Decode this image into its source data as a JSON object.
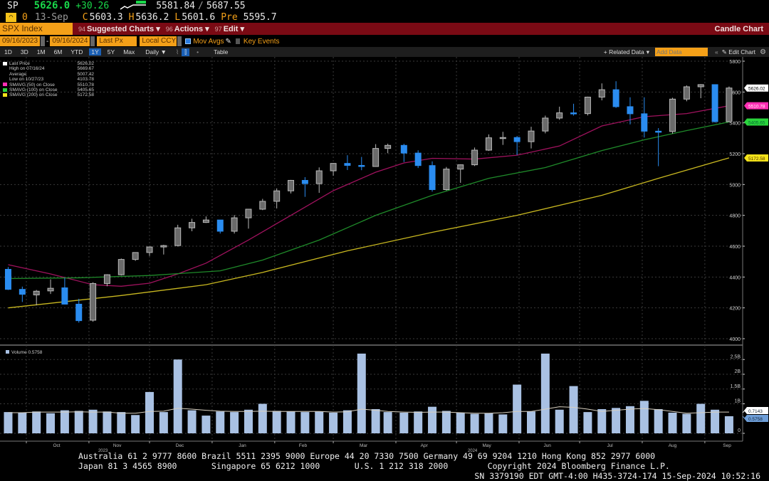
{
  "quote": {
    "ticker": "SP",
    "last": "5626.0",
    "change": "+30.26",
    "range_low": "5581.84",
    "range_sep": "/",
    "range_high": "5687.55",
    "flag": "0",
    "date": "13-Sep",
    "close_label": "C",
    "close": "5603.3",
    "high_label": "H",
    "high": "5636.2",
    "low_label": "L",
    "low": "5601.6",
    "pre_label": "Pre",
    "pre": "5595.7"
  },
  "menubar": {
    "security": "SPX Index",
    "suggested": "Suggested Charts",
    "suggested_key": "94",
    "actions": "Actions",
    "actions_key": "96",
    "edit": "Edit",
    "edit_key": "97",
    "title": "Candle Chart"
  },
  "controls": {
    "start_date": "09/16/2023",
    "end_date": "09/16/2024",
    "dash": "-",
    "field": "Last Px",
    "currency": "Local CCY",
    "mov_avgs": "Mov Avgs",
    "mov_avgs_checked": true,
    "key_events": "Key Events",
    "key_events_checked": false
  },
  "periods": {
    "items": [
      "1D",
      "3D",
      "1M",
      "6M",
      "YTD",
      "1Y",
      "5Y",
      "Max"
    ],
    "active": "1Y",
    "frequency": "Daily",
    "table": "Table",
    "related": "+ Related Data",
    "add_data_placeholder": "Add Data",
    "collapse": "«",
    "edit_chart": "Edit Chart"
  },
  "legend": [
    {
      "label": "Last Price",
      "value": "5626.02",
      "color": "#ffffff"
    },
    {
      "label": "High on 07/16/24",
      "value": "5669.67",
      "color": ""
    },
    {
      "label": "Average",
      "value": "5007.42",
      "color": ""
    },
    {
      "label": "Low on 10/27/23",
      "value": "4103.78",
      "color": ""
    },
    {
      "label": "SMAVG (50)  on Close",
      "value": "5510.78",
      "color": "#ff2fb4"
    },
    {
      "label": "SMAVG (100)  on Close",
      "value": "5405.65",
      "color": "#2ad43c"
    },
    {
      "label": "SMAVG (200)  on Close",
      "value": "5172.58",
      "color": "#f2e21a"
    }
  ],
  "volume_legend": "Volume 0.5758",
  "chart_data": {
    "type": "candlestick",
    "title": "",
    "price_axis": {
      "ylim": [
        4000,
        5800
      ],
      "ticks": [
        4000,
        4200,
        4400,
        4600,
        4800,
        5000,
        5200,
        5400,
        5600,
        5800
      ]
    },
    "volume_axis": {
      "ylim": [
        0,
        2.9
      ],
      "ticks": [
        {
          "v": 0,
          "label": "0"
        },
        {
          "v": 1,
          "label": "1B"
        },
        {
          "v": 1.5,
          "label": "1.5B"
        },
        {
          "v": 2,
          "label": "2B"
        },
        {
          "v": 2.5,
          "label": "2.5B"
        }
      ]
    },
    "x_range": [
      "2023-09-16",
      "2024-09-16"
    ],
    "months": [
      {
        "d": "2023-10-16",
        "label": "Oct"
      },
      {
        "d": "2023-11-15",
        "label": "Nov"
      },
      {
        "d": "2023-12-16",
        "label": "Dec"
      },
      {
        "d": "2024-01-16",
        "label": "Jan"
      },
      {
        "d": "2024-02-15",
        "label": "Feb"
      },
      {
        "d": "2024-03-16",
        "label": "Mar"
      },
      {
        "d": "2024-04-15",
        "label": "Apr"
      },
      {
        "d": "2024-05-16",
        "label": "May"
      },
      {
        "d": "2024-06-15",
        "label": "Jun"
      },
      {
        "d": "2024-07-16",
        "label": "Jul"
      },
      {
        "d": "2024-08-16",
        "label": "Aug"
      },
      {
        "d": "2024-09-12",
        "label": "Sep"
      }
    ],
    "month_starts": [
      "2023-10-01",
      "2023-11-01",
      "2023-12-01",
      "2024-01-01",
      "2024-02-01",
      "2024-03-01",
      "2024-04-01",
      "2024-05-01",
      "2024-06-01",
      "2024-07-01",
      "2024-08-01",
      "2024-09-01"
    ],
    "years": [
      {
        "d": "2023-11-15",
        "label": "2023"
      },
      {
        "d": "2024-05-16",
        "label": "2024"
      }
    ],
    "candles_columns": [
      "date",
      "open",
      "high",
      "low",
      "close"
    ],
    "candles": [
      [
        "2023-09-22",
        4450,
        4465,
        4316,
        4320
      ],
      [
        "2023-09-29",
        4320,
        4338,
        4238,
        4288
      ],
      [
        "2023-10-06",
        4284,
        4316,
        4216,
        4308
      ],
      [
        "2023-10-13",
        4310,
        4385,
        4290,
        4327
      ],
      [
        "2023-10-20",
        4330,
        4394,
        4223,
        4224
      ],
      [
        "2023-10-27",
        4224,
        4259,
        4104,
        4117
      ],
      [
        "2023-11-03",
        4120,
        4366,
        4110,
        4358
      ],
      [
        "2023-11-10",
        4358,
        4418,
        4340,
        4415
      ],
      [
        "2023-11-17",
        4415,
        4520,
        4410,
        4514
      ],
      [
        "2023-11-24",
        4514,
        4560,
        4505,
        4559
      ],
      [
        "2023-12-01",
        4559,
        4597,
        4537,
        4595
      ],
      [
        "2023-12-08",
        4595,
        4609,
        4546,
        4604
      ],
      [
        "2023-12-15",
        4604,
        4739,
        4598,
        4719
      ],
      [
        "2023-12-22",
        4719,
        4778,
        4697,
        4754
      ],
      [
        "2023-12-29",
        4754,
        4793,
        4751,
        4770
      ],
      [
        "2024-01-05",
        4770,
        4770,
        4682,
        4697
      ],
      [
        "2024-01-12",
        4697,
        4802,
        4682,
        4784
      ],
      [
        "2024-01-19",
        4784,
        4842,
        4714,
        4840
      ],
      [
        "2024-01-26",
        4840,
        4907,
        4834,
        4891
      ],
      [
        "2024-02-02",
        4891,
        4975,
        4845,
        4959
      ],
      [
        "2024-02-09",
        4959,
        5030,
        4942,
        5027
      ],
      [
        "2024-02-16",
        5027,
        5048,
        4920,
        5006
      ],
      [
        "2024-02-23",
        5006,
        5111,
        4946,
        5089
      ],
      [
        "2024-03-01",
        5089,
        5140,
        5057,
        5137
      ],
      [
        "2024-03-08",
        5137,
        5190,
        5094,
        5124
      ],
      [
        "2024-03-15",
        5124,
        5179,
        5093,
        5117
      ],
      [
        "2024-03-22",
        5117,
        5262,
        5116,
        5234
      ],
      [
        "2024-03-28",
        5234,
        5265,
        5203,
        5254
      ],
      [
        "2024-04-05",
        5254,
        5264,
        5146,
        5204
      ],
      [
        "2024-04-12",
        5204,
        5222,
        5107,
        5123
      ],
      [
        "2024-04-19",
        5123,
        5150,
        4954,
        4967
      ],
      [
        "2024-04-26",
        4967,
        5114,
        4961,
        5100
      ],
      [
        "2024-05-03",
        5100,
        5130,
        5011,
        5128
      ],
      [
        "2024-05-10",
        5128,
        5240,
        5120,
        5223
      ],
      [
        "2024-05-17",
        5223,
        5325,
        5218,
        5303
      ],
      [
        "2024-05-24",
        5303,
        5342,
        5257,
        5305
      ],
      [
        "2024-05-31",
        5305,
        5315,
        5191,
        5278
      ],
      [
        "2024-06-07",
        5278,
        5375,
        5234,
        5347
      ],
      [
        "2024-06-14",
        5347,
        5447,
        5332,
        5431
      ],
      [
        "2024-06-21",
        5431,
        5505,
        5420,
        5465
      ],
      [
        "2024-06-28",
        5465,
        5524,
        5447,
        5460
      ],
      [
        "2024-07-05",
        5460,
        5570,
        5448,
        5567
      ],
      [
        "2024-07-12",
        5567,
        5656,
        5546,
        5615
      ],
      [
        "2024-07-19",
        5615,
        5670,
        5497,
        5505
      ],
      [
        "2024-07-26",
        5505,
        5566,
        5390,
        5459
      ],
      [
        "2024-08-02",
        5459,
        5566,
        5305,
        5346
      ],
      [
        "2024-08-09",
        5346,
        5366,
        5119,
        5344
      ],
      [
        "2024-08-16",
        5344,
        5563,
        5330,
        5554
      ],
      [
        "2024-08-23",
        5554,
        5643,
        5540,
        5634
      ],
      [
        "2024-08-30",
        5634,
        5651,
        5560,
        5648
      ],
      [
        "2024-09-06",
        5648,
        5650,
        5402,
        5408
      ],
      [
        "2024-09-13",
        5408,
        5636,
        5406,
        5626
      ]
    ],
    "volume_b": [
      0.72,
      0.7,
      0.74,
      0.68,
      0.78,
      0.76,
      0.8,
      0.74,
      0.72,
      0.62,
      1.4,
      0.72,
      2.5,
      0.78,
      0.6,
      0.74,
      0.72,
      0.8,
      1.0,
      0.76,
      0.74,
      0.72,
      0.74,
      0.7,
      0.78,
      2.7,
      0.82,
      0.72,
      0.7,
      0.74,
      0.9,
      0.76,
      0.7,
      0.66,
      0.68,
      0.64,
      1.65,
      0.74,
      2.7,
      0.8,
      1.6,
      0.72,
      0.82,
      0.86,
      0.92,
      1.1,
      0.82,
      0.7,
      0.66,
      1.0,
      0.8,
      0.58
    ],
    "volume_avg_b": [
      0.7,
      0.7,
      0.72,
      0.72,
      0.72,
      0.73,
      0.72,
      0.72,
      0.68,
      0.68,
      0.74,
      0.75,
      0.85,
      0.82,
      0.78,
      0.75,
      0.74,
      0.74,
      0.75,
      0.74,
      0.74,
      0.74,
      0.74,
      0.72,
      0.73,
      0.82,
      0.78,
      0.74,
      0.72,
      0.71,
      0.72,
      0.72,
      0.7,
      0.68,
      0.68,
      0.7,
      0.74,
      0.74,
      0.82,
      0.9,
      0.88,
      0.82,
      0.74,
      0.78,
      0.82,
      0.84,
      0.8,
      0.74,
      0.68,
      0.7,
      0.72,
      0.72
    ],
    "sma": [
      {
        "name": "SMAVG (50)",
        "color": "#a0125e",
        "points": [
          [
            "2023-09-22",
            4480
          ],
          [
            "2023-10-13",
            4420
          ],
          [
            "2023-11-03",
            4350
          ],
          [
            "2023-11-17",
            4340
          ],
          [
            "2023-12-01",
            4360
          ],
          [
            "2023-12-15",
            4420
          ],
          [
            "2023-12-29",
            4490
          ],
          [
            "2024-01-19",
            4640
          ],
          [
            "2024-02-09",
            4800
          ],
          [
            "2024-03-01",
            4960
          ],
          [
            "2024-03-22",
            5080
          ],
          [
            "2024-04-05",
            5140
          ],
          [
            "2024-04-19",
            5170
          ],
          [
            "2024-05-10",
            5165
          ],
          [
            "2024-05-31",
            5190
          ],
          [
            "2024-06-21",
            5250
          ],
          [
            "2024-07-12",
            5380
          ],
          [
            "2024-08-02",
            5440
          ],
          [
            "2024-08-23",
            5460
          ],
          [
            "2024-09-13",
            5511
          ]
        ]
      },
      {
        "name": "SMAVG (100)",
        "color": "#1f8a2a",
        "points": [
          [
            "2023-09-22",
            4390
          ],
          [
            "2023-10-27",
            4395
          ],
          [
            "2023-12-01",
            4410
          ],
          [
            "2024-01-05",
            4440
          ],
          [
            "2024-01-26",
            4510
          ],
          [
            "2024-02-23",
            4640
          ],
          [
            "2024-03-22",
            4800
          ],
          [
            "2024-04-19",
            4930
          ],
          [
            "2024-05-17",
            5040
          ],
          [
            "2024-06-14",
            5110
          ],
          [
            "2024-07-12",
            5220
          ],
          [
            "2024-08-02",
            5290
          ],
          [
            "2024-08-23",
            5350
          ],
          [
            "2024-09-13",
            5406
          ]
        ]
      },
      {
        "name": "SMAVG (200)",
        "color": "#c9b820",
        "points": [
          [
            "2023-09-22",
            4200
          ],
          [
            "2023-11-17",
            4280
          ],
          [
            "2023-12-29",
            4350
          ],
          [
            "2024-01-26",
            4430
          ],
          [
            "2024-03-08",
            4570
          ],
          [
            "2024-04-19",
            4690
          ],
          [
            "2024-05-31",
            4800
          ],
          [
            "2024-07-12",
            4930
          ],
          [
            "2024-08-09",
            5040
          ],
          [
            "2024-09-13",
            5173
          ]
        ]
      }
    ],
    "right_labels": [
      {
        "v": 5626.02,
        "text": "5626.02",
        "bg": "#ffffff",
        "fg": "#000"
      },
      {
        "v": 5510.78,
        "text": "5510.78",
        "bg": "#ff2fb4",
        "fg": "#fff"
      },
      {
        "v": 5405.65,
        "text": "5405.65",
        "bg": "#2ad43c",
        "fg": "#063"
      },
      {
        "v": 5172.58,
        "text": "5172.58",
        "bg": "#f2e21a",
        "fg": "#530"
      }
    ],
    "volume_right_labels": [
      {
        "v": 0.7,
        "text": "0.7143",
        "bg": "#ffffff"
      },
      {
        "v": 0.5758,
        "text": "0.5758",
        "bg": "#6e9ed8"
      }
    ],
    "colors": {
      "up": "#b8b8b8",
      "down": "#2a8cf0",
      "volume": "#a9c1e3",
      "volume_avg": "#d8d0c0",
      "grid": "#3a3a3a"
    }
  },
  "footer": {
    "line1": "Australia 61 2 9777 8600 Brazil 5511 2395 9000 Europe 44 20 7330 7500 Germany 49 69 9204 1210 Hong Kong 852 2977 6000",
    "line2": "Japan 81 3 4565 8900       Singapore 65 6212 1000       U.S. 1 212 318 2000        Copyright 2024 Bloomberg Finance L.P.",
    "line3": "SN 3379190 EDT  GMT-4:00 H435-3724-174 15-Sep-2024 10:52:16"
  }
}
